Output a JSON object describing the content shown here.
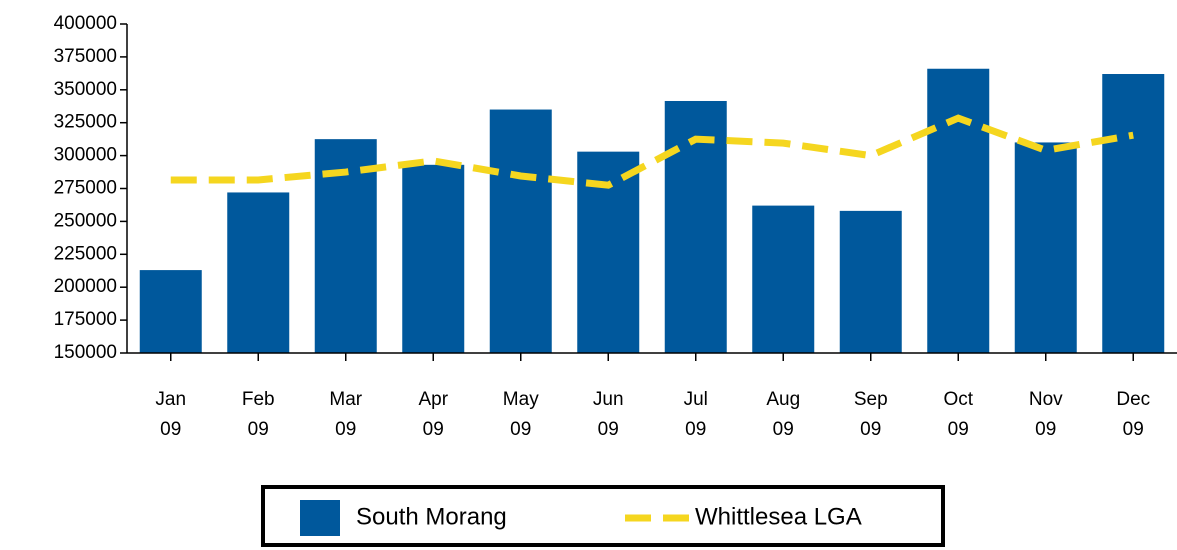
{
  "chart_data": {
    "type": "bar",
    "categories": [
      "Jan 09",
      "Feb 09",
      "Mar 09",
      "Apr 09",
      "May 09",
      "Jun 09",
      "Jul 09",
      "Aug 09",
      "Sep 09",
      "Oct 09",
      "Nov 09",
      "Dec 09"
    ],
    "series": [
      {
        "name": "South Morang",
        "type": "bar",
        "color": "#00589c",
        "values": [
          213000,
          272000,
          312500,
          293000,
          335000,
          303000,
          341500,
          262000,
          258000,
          366000,
          310000,
          362000
        ]
      },
      {
        "name": "Whittlesea LGA",
        "type": "line",
        "color": "#f5d61f",
        "values": [
          281500,
          281500,
          287500,
          296000,
          284500,
          277500,
          312500,
          309500,
          300000,
          328500,
          304000,
          315500
        ]
      }
    ],
    "ylim": [
      150000,
      400000
    ],
    "yticks": [
      150000,
      175000,
      200000,
      225000,
      250000,
      275000,
      300000,
      325000,
      350000,
      375000,
      400000
    ],
    "legend": "bottom"
  }
}
